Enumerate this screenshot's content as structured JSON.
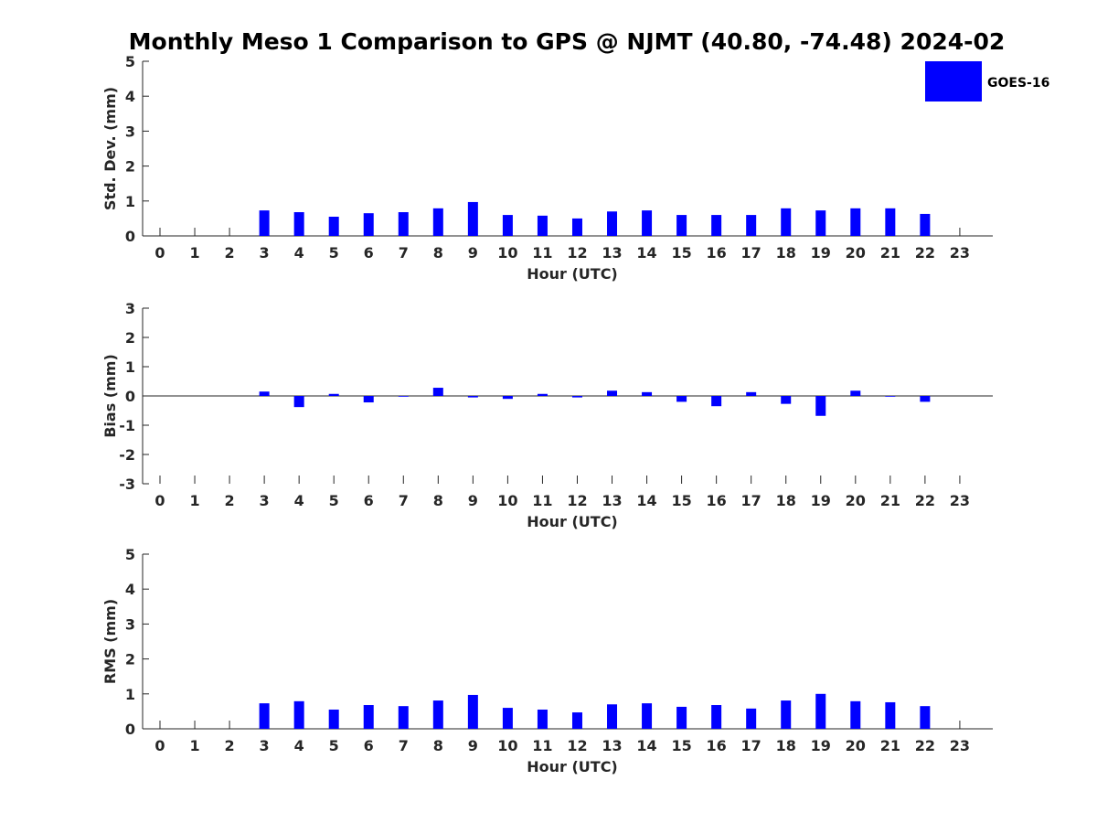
{
  "title": "Monthly Meso 1 Comparison to GPS @ NJMT (40.80, -74.48) 2024-02",
  "legend": {
    "label": "GOES-16",
    "color": "#0000ff",
    "placement": "top-right"
  },
  "colors": {
    "bar": "#0000ff",
    "axis": "#262626",
    "text": "#262626"
  },
  "chart_data": [
    {
      "type": "bar",
      "xlabel": "Hour (UTC)",
      "ylabel": "Std. Dev. (mm)",
      "ylim": [
        0,
        5
      ],
      "yticks": [
        0,
        1,
        2,
        3,
        4,
        5
      ],
      "categories": [
        0,
        1,
        2,
        3,
        4,
        5,
        6,
        7,
        8,
        9,
        10,
        11,
        12,
        13,
        14,
        15,
        16,
        17,
        18,
        19,
        20,
        21,
        22,
        23
      ],
      "series": [
        {
          "name": "GOES-16",
          "values": [
            null,
            null,
            null,
            0.73,
            0.68,
            0.55,
            0.65,
            0.68,
            0.79,
            0.97,
            0.6,
            0.58,
            0.5,
            0.7,
            0.73,
            0.6,
            0.6,
            0.6,
            0.79,
            0.73,
            0.79,
            0.79,
            0.63,
            null
          ]
        }
      ]
    },
    {
      "type": "bar",
      "xlabel": "Hour (UTC)",
      "ylabel": "Bias (mm)",
      "ylim": [
        -3,
        3
      ],
      "yticks": [
        -3,
        -2,
        -1,
        0,
        1,
        2,
        3
      ],
      "categories": [
        0,
        1,
        2,
        3,
        4,
        5,
        6,
        7,
        8,
        9,
        10,
        11,
        12,
        13,
        14,
        15,
        16,
        17,
        18,
        19,
        20,
        21,
        22,
        23
      ],
      "series": [
        {
          "name": "GOES-16",
          "values": [
            null,
            null,
            null,
            0.15,
            -0.38,
            0.07,
            -0.22,
            0.0,
            0.28,
            -0.05,
            -0.1,
            0.07,
            -0.05,
            0.18,
            0.13,
            -0.2,
            -0.35,
            0.13,
            -0.27,
            -0.68,
            0.18,
            0.0,
            -0.2,
            null
          ]
        }
      ]
    },
    {
      "type": "bar",
      "xlabel": "Hour (UTC)",
      "ylabel": "RMS (mm)",
      "ylim": [
        0,
        5
      ],
      "yticks": [
        0,
        1,
        2,
        3,
        4,
        5
      ],
      "categories": [
        0,
        1,
        2,
        3,
        4,
        5,
        6,
        7,
        8,
        9,
        10,
        11,
        12,
        13,
        14,
        15,
        16,
        17,
        18,
        19,
        20,
        21,
        22,
        23
      ],
      "series": [
        {
          "name": "GOES-16",
          "values": [
            null,
            null,
            null,
            0.73,
            0.79,
            0.55,
            0.68,
            0.65,
            0.81,
            0.97,
            0.6,
            0.55,
            0.47,
            0.7,
            0.73,
            0.63,
            0.68,
            0.58,
            0.81,
            1.0,
            0.79,
            0.76,
            0.65,
            null
          ]
        }
      ]
    }
  ]
}
